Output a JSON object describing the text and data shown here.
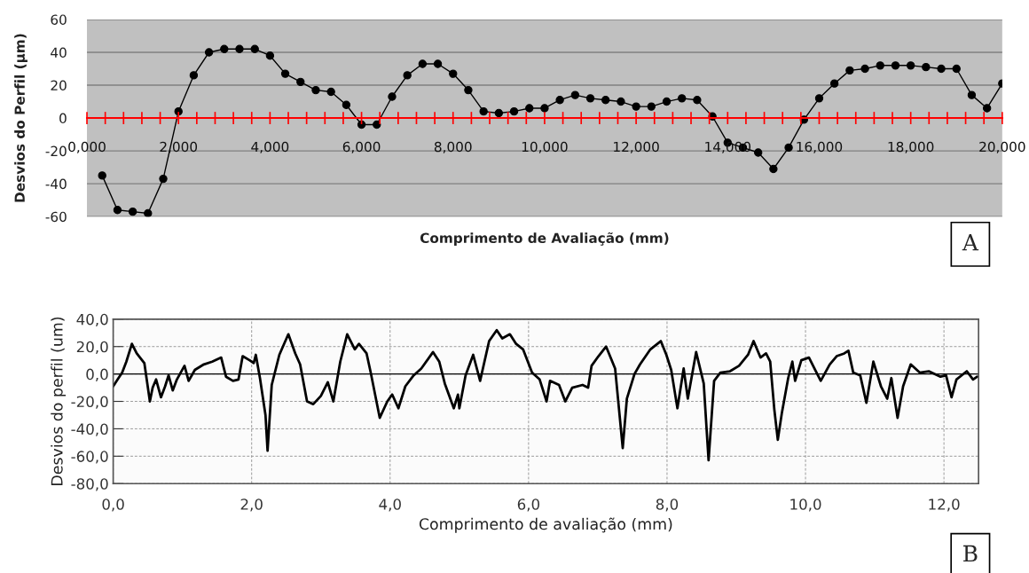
{
  "chart_data": [
    {
      "type": "line",
      "xlabel": "Comprimento de Avaliação (mm)",
      "ylabel": "Desvios do Perfil (µm)",
      "annotations": [
        "A"
      ],
      "x": [
        0.333,
        0.667,
        1.0,
        1.333,
        1.667,
        2.0,
        2.333,
        2.667,
        3.0,
        3.333,
        3.667,
        4.0,
        4.333,
        4.667,
        5.0,
        5.333,
        5.667,
        6.0,
        6.333,
        6.667,
        7.0,
        7.333,
        7.667,
        8.0,
        8.333,
        8.667,
        9.0,
        9.333,
        9.667,
        10.0,
        10.333,
        10.667,
        11.0,
        11.333,
        11.667,
        12.0,
        12.333,
        12.667,
        13.0,
        13.333,
        13.667,
        14.0,
        14.333,
        14.667,
        15.0,
        15.333,
        15.667,
        16.0,
        16.333,
        16.667,
        17.0,
        17.333,
        17.667,
        18.0,
        18.333,
        18.667,
        19.0,
        19.333,
        19.667,
        20.0
      ],
      "series": [
        {
          "color": "#000000",
          "values": [
            -35,
            -56,
            -57,
            -58,
            -37,
            4,
            26,
            40,
            42,
            42,
            42,
            38,
            27,
            22,
            17,
            16,
            8,
            -4,
            -4,
            13,
            26,
            33,
            33,
            27,
            17,
            4,
            3,
            4,
            6,
            6,
            11,
            14,
            12,
            11,
            10,
            7,
            7,
            10,
            12,
            11,
            1,
            -15,
            -18,
            -21,
            -31,
            -18,
            -1,
            12,
            21,
            29,
            30,
            32,
            32,
            32,
            31,
            30,
            30,
            14,
            6,
            21
          ]
        }
      ],
      "xlim": [
        0,
        20
      ],
      "xticks": [
        {
          "value": 0,
          "label": "0,000"
        },
        {
          "value": 0.4,
          "label": null
        },
        {
          "value": 0.8,
          "label": null
        },
        {
          "value": 1.2,
          "label": null
        },
        {
          "value": 1.6,
          "label": null
        },
        {
          "value": 2,
          "label": "2,000"
        },
        {
          "value": 2.4,
          "label": null
        },
        {
          "value": 2.8,
          "label": null
        },
        {
          "value": 3.2,
          "label": null
        },
        {
          "value": 3.6,
          "label": null
        },
        {
          "value": 4,
          "label": "4,000"
        },
        {
          "value": 4.4,
          "label": null
        },
        {
          "value": 4.8,
          "label": null
        },
        {
          "value": 5.2,
          "label": null
        },
        {
          "value": 5.6,
          "label": null
        },
        {
          "value": 6,
          "label": "6,000"
        },
        {
          "value": 6.4,
          "label": null
        },
        {
          "value": 6.8,
          "label": null
        },
        {
          "value": 7.2,
          "label": null
        },
        {
          "value": 7.6,
          "label": null
        },
        {
          "value": 8,
          "label": "8,000"
        },
        {
          "value": 8.4,
          "label": null
        },
        {
          "value": 8.8,
          "label": null
        },
        {
          "value": 9.2,
          "label": null
        },
        {
          "value": 9.6,
          "label": null
        },
        {
          "value": 10,
          "label": "10,000"
        },
        {
          "value": 10.4,
          "label": null
        },
        {
          "value": 10.8,
          "label": null
        },
        {
          "value": 11.2,
          "label": null
        },
        {
          "value": 11.6,
          "label": null
        },
        {
          "value": 12,
          "label": "12,000"
        },
        {
          "value": 12.4,
          "label": null
        },
        {
          "value": 12.8,
          "label": null
        },
        {
          "value": 13.2,
          "label": null
        },
        {
          "value": 13.6,
          "label": null
        },
        {
          "value": 14,
          "label": "14,000"
        },
        {
          "value": 14.4,
          "label": null
        },
        {
          "value": 14.8,
          "label": null
        },
        {
          "value": 15.2,
          "label": null
        },
        {
          "value": 15.6,
          "label": null
        },
        {
          "value": 16,
          "label": "16,000"
        },
        {
          "value": 16.4,
          "label": null
        },
        {
          "value": 16.8,
          "label": null
        },
        {
          "value": 17.2,
          "label": null
        },
        {
          "value": 17.6,
          "label": null
        },
        {
          "value": 18,
          "label": "18,000"
        },
        {
          "value": 18.4,
          "label": null
        },
        {
          "value": 18.8,
          "label": null
        },
        {
          "value": 19.2,
          "label": null
        },
        {
          "value": 19.6,
          "label": null
        },
        {
          "value": 20,
          "label": "20,000"
        }
      ],
      "ylim": [
        -60,
        60
      ],
      "yticks": [
        -60,
        -40,
        -20,
        0,
        20,
        40,
        60
      ],
      "grid": "y",
      "marker": "circle",
      "line_style": "solid",
      "legend": false
    },
    {
      "type": "line",
      "xlabel": "Comprimento de avaliação (mm)",
      "ylabel": "Desvios do perfil (um)",
      "annotations": [
        "B"
      ],
      "x": [
        0,
        0.064,
        0.13,
        0.19,
        0.27,
        0.34,
        0.45,
        0.53,
        0.57,
        0.62,
        0.69,
        0.75,
        0.8,
        0.86,
        0.92,
        1.03,
        1.09,
        1.18,
        1.31,
        1.43,
        1.56,
        1.63,
        1.73,
        1.81,
        1.87,
        1.97,
        2.03,
        2.06,
        2.12,
        2.2,
        2.23,
        2.29,
        2.4,
        2.53,
        2.63,
        2.7,
        2.8,
        2.89,
        3.0,
        3.1,
        3.18,
        3.28,
        3.38,
        3.49,
        3.55,
        3.66,
        3.72,
        3.85,
        3.96,
        4.03,
        4.12,
        4.22,
        4.34,
        4.45,
        4.62,
        4.71,
        4.79,
        4.92,
        4.98,
        5.0,
        5.09,
        5.2,
        5.3,
        5.43,
        5.54,
        5.62,
        5.73,
        5.82,
        5.92,
        6.05,
        6.16,
        6.26,
        6.31,
        6.44,
        6.53,
        6.63,
        6.78,
        6.86,
        6.91,
        7.01,
        7.12,
        7.25,
        7.36,
        7.42,
        7.53,
        7.61,
        7.76,
        7.91,
        7.99,
        8.06,
        8.15,
        8.24,
        8.3,
        8.42,
        8.53,
        8.6,
        8.68,
        8.77,
        8.91,
        9.04,
        9.17,
        9.25,
        9.35,
        9.43,
        9.49,
        9.55,
        9.6,
        9.66,
        9.75,
        9.81,
        9.85,
        9.94,
        10.05,
        10.15,
        10.22,
        10.35,
        10.45,
        10.56,
        10.62,
        10.69,
        10.79,
        10.88,
        10.98,
        11.09,
        11.18,
        11.24,
        11.33,
        11.41,
        11.52,
        11.65,
        11.78,
        11.95,
        12.03,
        12.11,
        12.18,
        12.33,
        12.42,
        12.48
      ],
      "series": [
        {
          "color": "#000000",
          "values": [
            -9,
            -4,
            1,
            9,
            22,
            15,
            8,
            -20,
            -10,
            -4,
            -17,
            -9,
            -1,
            -12,
            -4,
            6,
            -5,
            3,
            7,
            9,
            12,
            -2,
            -5,
            -4,
            13,
            10,
            8,
            14,
            -3,
            -30,
            -56,
            -8,
            14,
            29,
            15,
            7,
            -20,
            -22,
            -16,
            -6,
            -20,
            9,
            29,
            18,
            22,
            15,
            1,
            -32,
            -20,
            -15,
            -25,
            -9,
            -1,
            4,
            16,
            9,
            -7,
            -25,
            -15,
            -25,
            -1,
            14,
            -5,
            24,
            32,
            26,
            29,
            22,
            18,
            1,
            -4,
            -20,
            -5,
            -8,
            -20,
            -10,
            -8,
            -10,
            6,
            13,
            20,
            4,
            -54,
            -18,
            0,
            7,
            18,
            24,
            14,
            3,
            -25,
            4,
            -18,
            16,
            -7,
            -63,
            -5,
            1,
            2,
            6,
            14,
            24,
            12,
            15,
            9,
            -26,
            -48,
            -28,
            -3,
            9,
            -5,
            10,
            12,
            2,
            -5,
            7,
            13,
            15,
            17,
            1,
            -1,
            -21,
            9,
            -9,
            -18,
            -3,
            -32,
            -9,
            7,
            1,
            2,
            -2,
            -1,
            -17,
            -4,
            2,
            -4,
            -2
          ]
        }
      ],
      "xlim": [
        0,
        12.5
      ],
      "xticks": [
        {
          "value": 0,
          "label": "0,0"
        },
        {
          "value": 2,
          "label": "2,0"
        },
        {
          "value": 4,
          "label": "4,0"
        },
        {
          "value": 6,
          "label": "6,0"
        },
        {
          "value": 8,
          "label": "8,0"
        },
        {
          "value": 10,
          "label": "10,0"
        },
        {
          "value": 12,
          "label": "12,0"
        }
      ],
      "ylim": [
        -80,
        40
      ],
      "yticks": [
        {
          "value": -80,
          "label": "-80,0"
        },
        {
          "value": -60,
          "label": "-60,0"
        },
        {
          "value": -40,
          "label": "-40,0"
        },
        {
          "value": -20,
          "label": "-20,0"
        },
        {
          "value": 0,
          "label": "0,0"
        },
        {
          "value": 20,
          "label": "20,0"
        },
        {
          "value": 40,
          "label": "40,0"
        }
      ],
      "grid": true,
      "marker": "none",
      "line_style": "solid",
      "legend": false,
      "ref_lines": [
        {
          "axis": "y",
          "value": 0,
          "color": "#000000",
          "line_style": "solid"
        }
      ]
    }
  ]
}
